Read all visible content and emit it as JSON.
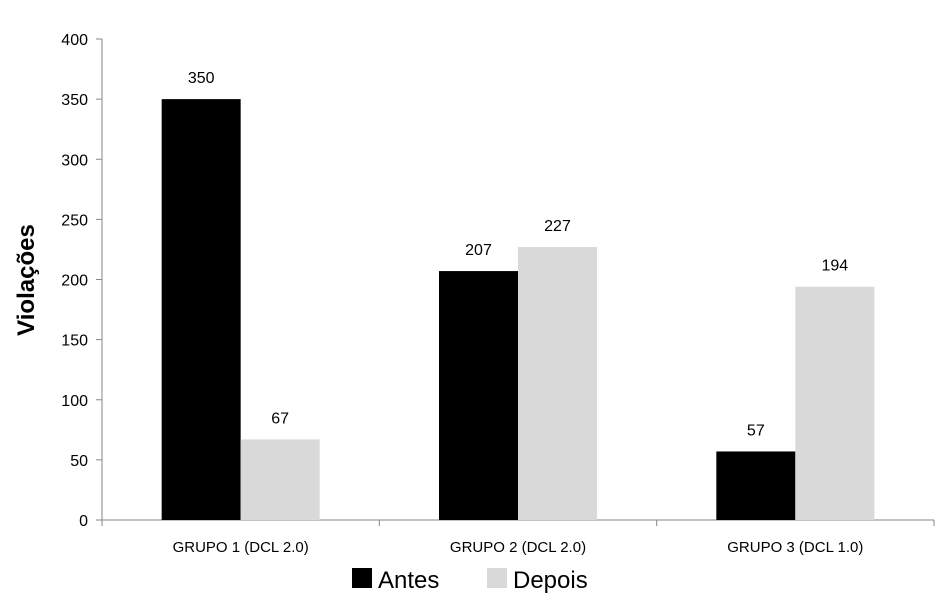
{
  "chart_data": {
    "type": "bar",
    "title": "",
    "xlabel": "",
    "ylabel": "Violações",
    "ylim": [
      0,
      400
    ],
    "yticks": [
      0,
      50,
      100,
      150,
      200,
      250,
      300,
      350,
      400
    ],
    "grid": false,
    "legend_position": "bottom",
    "categories": [
      "GRUPO 1  (DCL 2.0)",
      "GRUPO 2  (DCL 2.0)",
      "GRUPO 3 (DCL 1.0)"
    ],
    "series": [
      {
        "name": "Antes",
        "color": "#000000",
        "values": [
          350,
          207,
          57
        ]
      },
      {
        "name": "Depois",
        "color": "#d9d9d9",
        "values": [
          67,
          227,
          194
        ]
      }
    ]
  }
}
